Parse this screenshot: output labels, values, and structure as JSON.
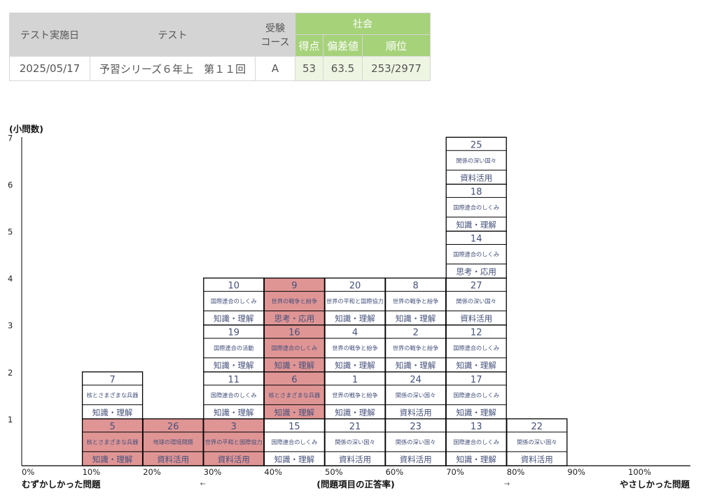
{
  "score_table": {
    "headers": {
      "date": "テスト実施日",
      "test": "テスト",
      "course_line1": "受験",
      "course_line2": "コース",
      "subject": "社会",
      "score": "得点",
      "deviation": "偏差値",
      "rank": "順位"
    },
    "row": {
      "date": "2025/05/17",
      "test": "予習シリーズ６年上　第１１回",
      "course": "A",
      "score": "53",
      "deviation": "63.5",
      "rank": "253/2977"
    },
    "colors": {
      "header_gray": "#d4d4d4",
      "subject_green": "#a6d27a",
      "score_bg": "#eef5e2"
    }
  },
  "chart_data": {
    "type": "table",
    "ylabel": "(小問数)",
    "xlabel": "(問題項目の正答率)",
    "left_label": "むずかしかった問題",
    "right_label": "やさしかった問題",
    "left_arrow": "←",
    "right_arrow": "→",
    "y_ticks": [
      "1",
      "2",
      "3",
      "4",
      "5",
      "6",
      "7"
    ],
    "x_ticks": [
      "0%",
      "10%",
      "20%",
      "30%",
      "40%",
      "50%",
      "60%",
      "70%",
      "80%",
      "90%",
      "100%"
    ],
    "highlight_color": "#e09595",
    "columns": [
      {
        "bin": "10%",
        "items": [
          {
            "num": "5",
            "topic": "核とさまざまな兵器",
            "category": "知識・理解",
            "highlight": true
          },
          {
            "num": "7",
            "topic": "核とさまざまな兵器",
            "category": "知識・理解",
            "highlight": false
          }
        ]
      },
      {
        "bin": "20%",
        "items": [
          {
            "num": "26",
            "topic": "地球の環境問題",
            "category": "資料活用",
            "highlight": true
          }
        ]
      },
      {
        "bin": "30%",
        "items": [
          {
            "num": "3",
            "topic": "世界の平和と国際協力",
            "category": "資料活用",
            "highlight": true
          },
          {
            "num": "11",
            "topic": "国際連合のしくみ",
            "category": "知識・理解",
            "highlight": false
          },
          {
            "num": "19",
            "topic": "国際連合の活動",
            "category": "知識・理解",
            "highlight": false
          },
          {
            "num": "10",
            "topic": "国際連合のしくみ",
            "category": "知識・理解",
            "highlight": false
          }
        ]
      },
      {
        "bin": "40%",
        "items": [
          {
            "num": "15",
            "topic": "国際連合のしくみ",
            "category": "知識・理解",
            "highlight": false
          },
          {
            "num": "6",
            "topic": "核とさまざまな兵器",
            "category": "知識・理解",
            "highlight": true
          },
          {
            "num": "16",
            "topic": "国際連合のしくみ",
            "category": "知識・理解",
            "highlight": true
          },
          {
            "num": "9",
            "topic": "世界の戦争と紛争",
            "category": "思考・応用",
            "highlight": true
          }
        ]
      },
      {
        "bin": "50%",
        "items": [
          {
            "num": "21",
            "topic": "関係の深い国々",
            "category": "資料活用",
            "highlight": false
          },
          {
            "num": "1",
            "topic": "世界の戦争と紛争",
            "category": "知識・理解",
            "highlight": false
          },
          {
            "num": "4",
            "topic": "世界の戦争と紛争",
            "category": "知識・理解",
            "highlight": false
          },
          {
            "num": "20",
            "topic": "世界の平和と国際協力",
            "category": "知識・理解",
            "highlight": false
          }
        ]
      },
      {
        "bin": "60%",
        "items": [
          {
            "num": "23",
            "topic": "関係の深い国々",
            "category": "資料活用",
            "highlight": false
          },
          {
            "num": "24",
            "topic": "関係の深い国々",
            "category": "資料活用",
            "highlight": false
          },
          {
            "num": "2",
            "topic": "世界の戦争と紛争",
            "category": "知識・理解",
            "highlight": false
          },
          {
            "num": "8",
            "topic": "世界の戦争と紛争",
            "category": "知識・理解",
            "highlight": false
          }
        ]
      },
      {
        "bin": "70%",
        "items": [
          {
            "num": "13",
            "topic": "国際連合のしくみ",
            "category": "知識・理解",
            "highlight": false
          },
          {
            "num": "17",
            "topic": "国際連合のしくみ",
            "category": "知識・理解",
            "highlight": false
          },
          {
            "num": "12",
            "topic": "国際連合のしくみ",
            "category": "知識・理解",
            "highlight": false
          },
          {
            "num": "27",
            "topic": "関係の深い国々",
            "category": "資料活用",
            "highlight": false
          },
          {
            "num": "14",
            "topic": "国際連合のしくみ",
            "category": "思考・応用",
            "highlight": false
          },
          {
            "num": "18",
            "topic": "国際連合のしくみ",
            "category": "知識・理解",
            "highlight": false
          },
          {
            "num": "25",
            "topic": "関係の深い国々",
            "category": "資料活用",
            "highlight": false
          }
        ]
      },
      {
        "bin": "80%",
        "items": [
          {
            "num": "22",
            "topic": "関係の深い国々",
            "category": "資料活用",
            "highlight": false
          }
        ]
      }
    ]
  }
}
